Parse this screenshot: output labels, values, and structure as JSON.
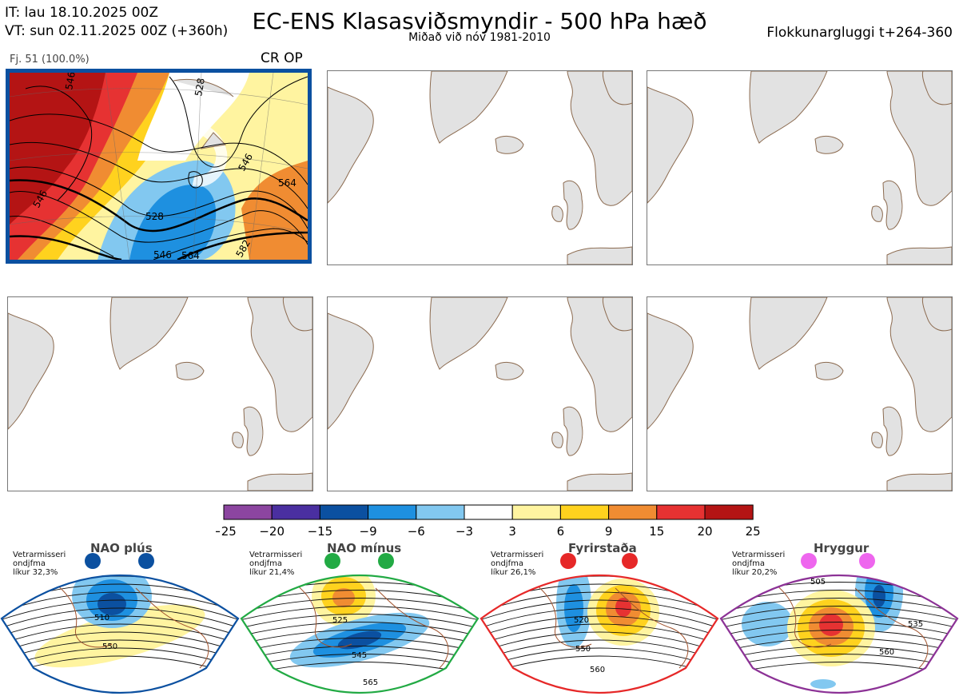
{
  "header": {
    "it_line": "IT: lau 18.10.2025 00Z",
    "vt_line": "VT: sun 02.11.2025 00Z  (+360h)",
    "title": "EC-ENS Klasasviðsmyndir - 500 hPa hæð",
    "subtitle": "Miðað við nóv 1981-2010",
    "window_label": "Flokkunargluggi t+264-360"
  },
  "panel1": {
    "member_label": "Fj. 51 (100.0%)",
    "badge": "CR OP",
    "contour_labels": [
      "546",
      "528",
      "546",
      "564",
      "546",
      "528",
      "564",
      "546",
      "582"
    ]
  },
  "colors": {
    "land": "#e2e2e2",
    "coast": "#8b6a4f",
    "highlight_border": "#0b50a0"
  },
  "chart_data": {
    "type": "heatmap",
    "title": "EC-ENS Klasasviðsmyndir - 500 hPa hæð",
    "colorbar": {
      "ticks": [
        "−25",
        "−20",
        "−15",
        "−9",
        "−6",
        "−3",
        "3",
        "6",
        "9",
        "15",
        "20",
        "25"
      ],
      "colors": [
        "#8c45a0",
        "#4a2fa0",
        "#0b50a0",
        "#1e90e0",
        "#82c8f0",
        "#ffffff",
        "#fff4a0",
        "#ffd21e",
        "#f08c32",
        "#e63232",
        "#b41414"
      ]
    },
    "regimes": [
      {
        "name": "NAO plús",
        "note": [
          "Vetrarmisseri",
          "ondjfma",
          "líkur 32,3%"
        ],
        "probability": 32.3,
        "dot_color": "#0b50a0",
        "frame_color": "#0b50a0",
        "labels": [
          "510",
          "550"
        ]
      },
      {
        "name": "NAO mínus",
        "note": [
          "Vetrarmisseri",
          "ondjfma",
          "líkur 21,4%"
        ],
        "probability": 21.4,
        "dot_color": "#22aa44",
        "frame_color": "#22aa44",
        "labels": [
          "525",
          "545",
          "565"
        ]
      },
      {
        "name": "Fyrirstaða",
        "note": [
          "Vetrarmisseri",
          "ondjfma",
          "líkur 26,1%"
        ],
        "probability": 26.1,
        "dot_color": "#e62828",
        "frame_color": "#e62828",
        "labels": [
          "520",
          "550",
          "560"
        ]
      },
      {
        "name": "Hryggur",
        "note": [
          "Vetrarmisseri",
          "ondjfma",
          "líkur 20,2%"
        ],
        "probability": 20.2,
        "dot_color": "#ee66ee",
        "frame_color": "#8c3296",
        "labels": [
          "505",
          "535",
          "560"
        ]
      }
    ]
  }
}
